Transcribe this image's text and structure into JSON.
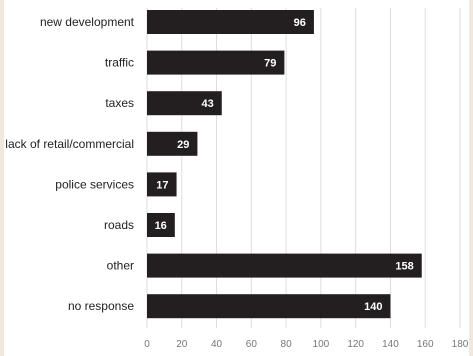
{
  "chart_data": {
    "type": "bar",
    "orientation": "horizontal",
    "categories": [
      "new development",
      "traffic",
      "taxes",
      "lack of retail/commercial",
      "police services",
      "roads",
      "other",
      "no response"
    ],
    "values": [
      96,
      79,
      43,
      29,
      17,
      16,
      158,
      140
    ],
    "xlim": [
      0,
      180
    ],
    "xticks": [
      0,
      20,
      40,
      60,
      80,
      100,
      120,
      140,
      160,
      180
    ],
    "grid": "vertical",
    "bar_color": "#231f20",
    "title": "",
    "xlabel": "",
    "ylabel": ""
  }
}
